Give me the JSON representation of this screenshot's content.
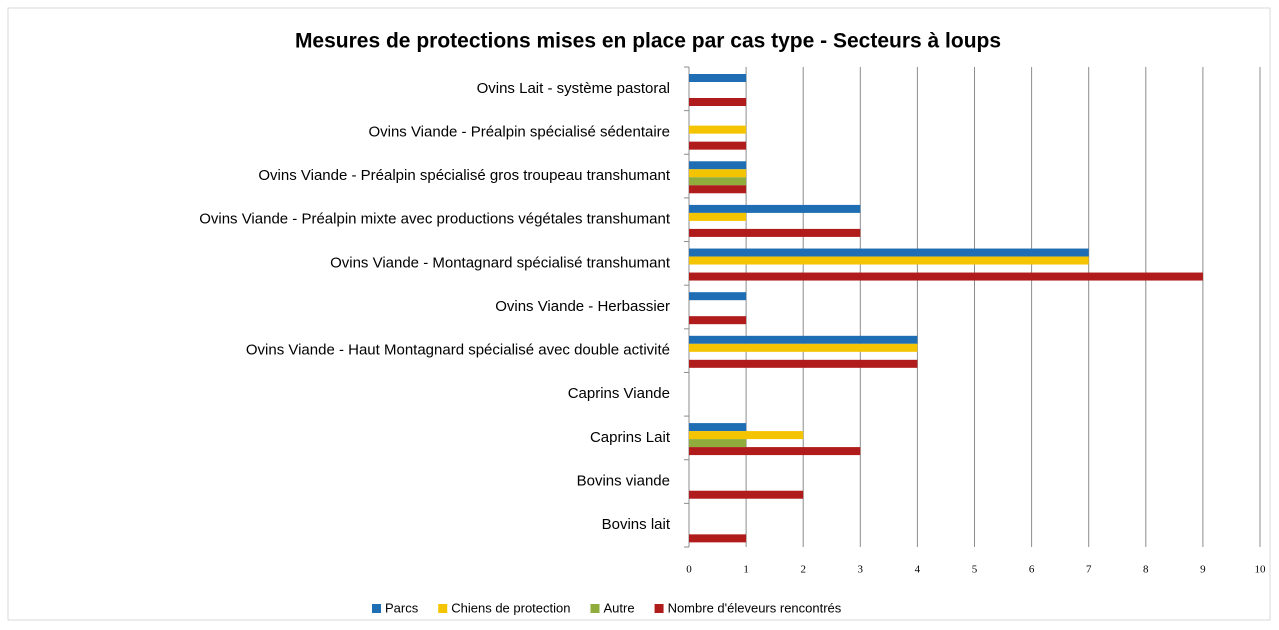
{
  "chart_data": {
    "type": "hbar",
    "title": "Mesures de protections mises en place par cas type - Secteurs à loups",
    "categories": [
      "Ovins Lait - système pastoral",
      "Ovins Viande - Préalpin spécialisé sédentaire",
      "Ovins Viande - Préalpin spécialisé gros troupeau transhumant",
      "Ovins Viande - Préalpin mixte avec productions végétales transhumant",
      "Ovins Viande - Montagnard spécialisé transhumant",
      "Ovins Viande - Herbassier",
      "Ovins Viande - Haut Montagnard spécialisé avec double activité",
      "Caprins Viande",
      "Caprins Lait",
      "Bovins viande",
      "Bovins lait"
    ],
    "series": [
      {
        "name": "Parcs",
        "color": "#1f6eb4",
        "values": [
          1,
          0,
          1,
          3,
          7,
          1,
          4,
          0,
          1,
          0,
          0
        ]
      },
      {
        "name": "Chiens de protection",
        "color": "#f5c400",
        "values": [
          0,
          1,
          1,
          1,
          7,
          0,
          4,
          0,
          2,
          0,
          0
        ]
      },
      {
        "name": "Autre",
        "color": "#8fac3c",
        "values": [
          0,
          0,
          1,
          0,
          0,
          0,
          0,
          0,
          1,
          0,
          0
        ]
      },
      {
        "name": "Nombre d'éleveurs rencontrés",
        "color": "#b01c1c",
        "values": [
          1,
          1,
          1,
          3,
          9,
          1,
          4,
          0,
          3,
          2,
          1
        ]
      }
    ],
    "xlim": [
      0,
      10
    ],
    "xticks": [
      0,
      1,
      2,
      3,
      4,
      5,
      6,
      7,
      8,
      9,
      10
    ],
    "grid": true,
    "legend": "bottom"
  }
}
